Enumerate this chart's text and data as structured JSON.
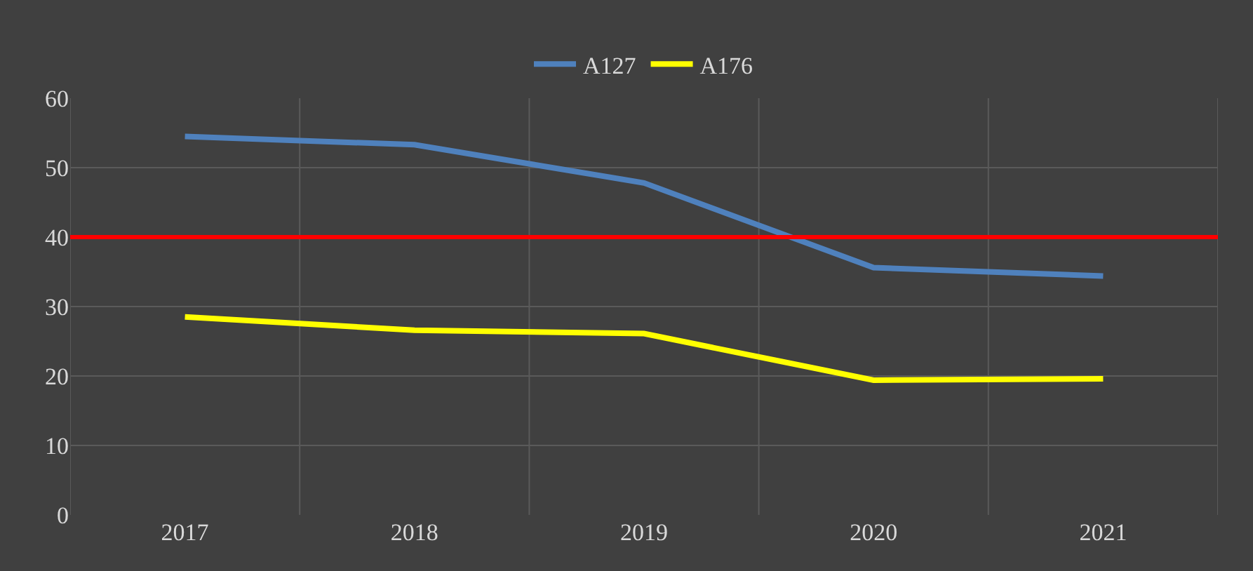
{
  "chart_data": {
    "type": "line",
    "categories": [
      "2017",
      "2018",
      "2019",
      "2020",
      "2021"
    ],
    "series": [
      {
        "name": "A127",
        "color": "#4f81bd",
        "values": [
          54.5,
          53.3,
          47.8,
          35.6,
          34.4
        ]
      },
      {
        "name": "A176",
        "color": "#ffff00",
        "values": [
          28.5,
          26.6,
          26.1,
          19.4,
          19.6
        ]
      }
    ],
    "ylim": [
      0,
      60
    ],
    "yticks": [
      0,
      10,
      20,
      30,
      40,
      50,
      60
    ],
    "ref_lines": [
      {
        "axis": "y",
        "value": 40,
        "color": "#ff0000"
      }
    ],
    "grid": true,
    "legend": "top",
    "marker": "none",
    "line_style": "solid"
  }
}
